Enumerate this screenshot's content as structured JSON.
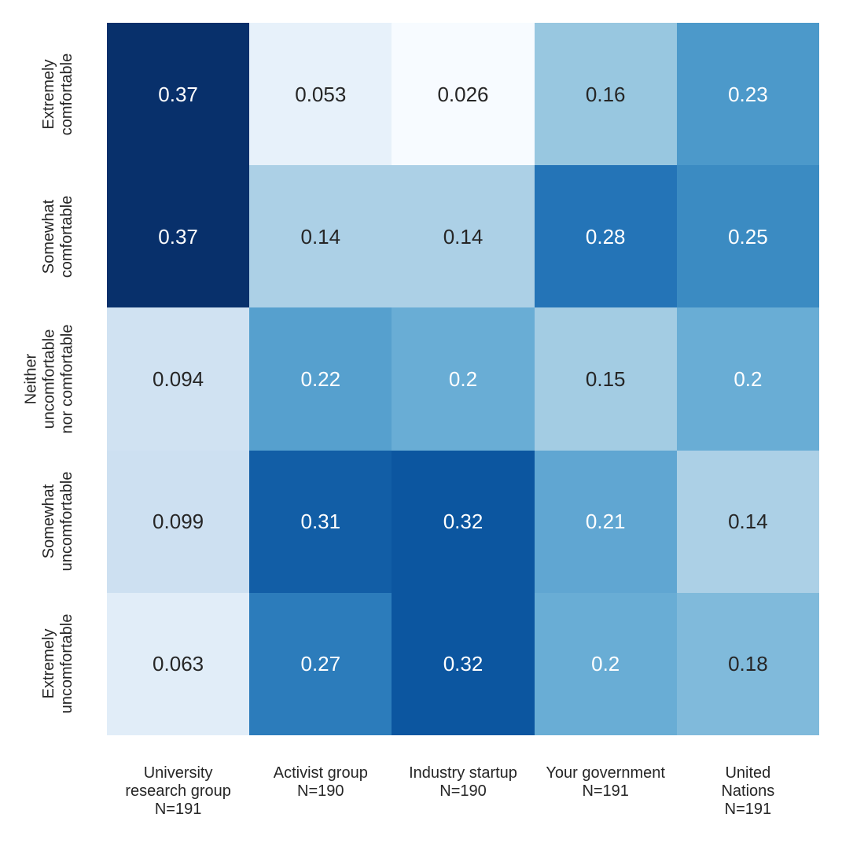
{
  "chart_data": {
    "type": "heatmap",
    "title": "",
    "xlabel": "",
    "ylabel": "",
    "grid": false,
    "legend": "none",
    "background": "#ffffff",
    "colormap": {
      "name": "Blues",
      "vmin": 0.026,
      "vmax": 0.37,
      "stops": [
        "#f7fbff",
        "#deebf7",
        "#c6dbef",
        "#9ecae1",
        "#6baed6",
        "#4292c6",
        "#2171b5",
        "#08519c",
        "#08306b"
      ]
    },
    "annotation_format": ".2g",
    "text_colors": {
      "on_dark": "#ffffff",
      "on_light": "#262626",
      "axis": "#262626"
    },
    "luminance_threshold": 0.408,
    "columns": [
      {
        "label": "University research group N=191",
        "label_lines": [
          "University",
          "research group",
          "N=191"
        ]
      },
      {
        "label": "Activist group N=190",
        "label_lines": [
          "Activist group",
          "N=190"
        ]
      },
      {
        "label": "Industry startup N=190",
        "label_lines": [
          "Industry startup",
          "N=190"
        ]
      },
      {
        "label": "Your government N=191",
        "label_lines": [
          "Your government",
          "N=191"
        ]
      },
      {
        "label": "United Nations N=191",
        "label_lines": [
          "United Nations",
          "N=191"
        ]
      }
    ],
    "rows": [
      {
        "label": "Extremely comfortable",
        "label_lines": [
          "Extremely",
          "comfortable"
        ]
      },
      {
        "label": "Somewhat comfortable",
        "label_lines": [
          "Somewhat",
          "comfortable"
        ]
      },
      {
        "label": "Neither uncomfortable nor comfortable",
        "label_lines": [
          "Neither",
          "uncomfortable",
          "nor comfortable"
        ]
      },
      {
        "label": "Somewhat uncomfortable",
        "label_lines": [
          "Somewhat",
          "uncomfortable"
        ]
      },
      {
        "label": "Extremely uncomfortable",
        "label_lines": [
          "Extremely",
          "uncomfortable"
        ]
      }
    ],
    "values": [
      [
        0.37,
        0.053,
        0.026,
        0.16,
        0.23
      ],
      [
        0.37,
        0.14,
        0.14,
        0.28,
        0.25
      ],
      [
        0.094,
        0.22,
        0.2,
        0.15,
        0.2
      ],
      [
        0.099,
        0.31,
        0.32,
        0.21,
        0.14
      ],
      [
        0.063,
        0.27,
        0.32,
        0.2,
        0.18
      ]
    ]
  }
}
